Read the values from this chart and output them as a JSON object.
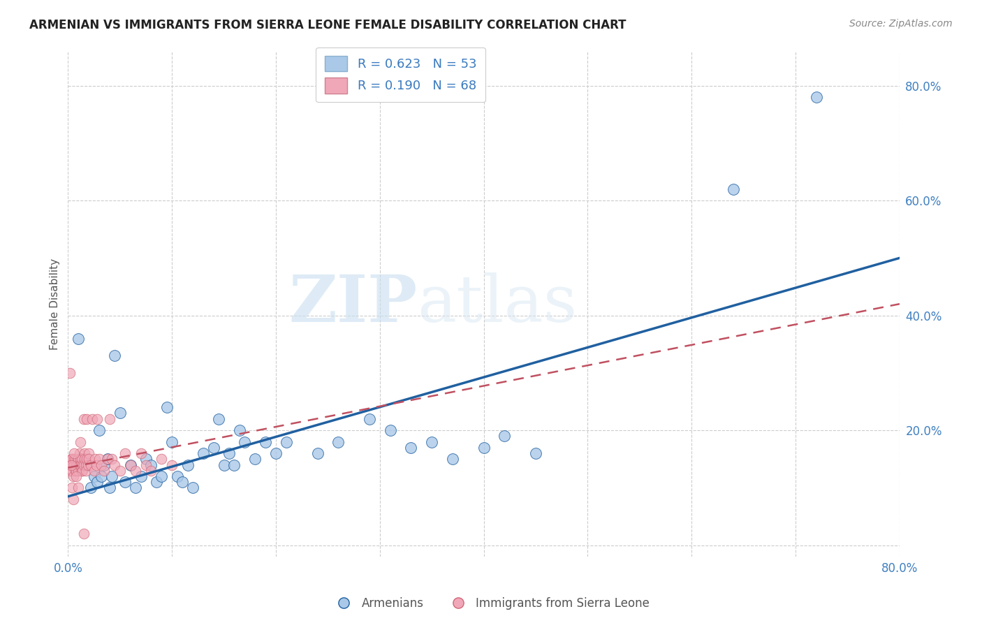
{
  "title": "ARMENIAN VS IMMIGRANTS FROM SIERRA LEONE FEMALE DISABILITY CORRELATION CHART",
  "source": "Source: ZipAtlas.com",
  "ylabel": "Female Disability",
  "xlim": [
    0,
    0.8
  ],
  "ylim": [
    -0.02,
    0.86
  ],
  "xticks": [
    0.0,
    0.1,
    0.2,
    0.3,
    0.4,
    0.5,
    0.6,
    0.7,
    0.8
  ],
  "xticklabels": [
    "0.0%",
    "",
    "",
    "",
    "",
    "",
    "",
    "",
    "80.0%"
  ],
  "ytick_positions": [
    0.0,
    0.2,
    0.4,
    0.6,
    0.8
  ],
  "yticklabels": [
    "",
    "20.0%",
    "40.0%",
    "60.0%",
    "80.0%"
  ],
  "legend_r1": "R = 0.623",
  "legend_n1": "N = 53",
  "legend_r2": "R = 0.190",
  "legend_n2": "N = 68",
  "watermark_zip": "ZIP",
  "watermark_atlas": "atlas",
  "blue_color": "#aac8e8",
  "pink_color": "#f0a8b8",
  "line_blue": "#2060a0",
  "line_pink": "#c05060",
  "blue_line_x0": 0.0,
  "blue_line_y0": 0.085,
  "blue_line_x1": 0.8,
  "blue_line_y1": 0.5,
  "pink_line_x0": 0.0,
  "pink_line_y0": 0.135,
  "pink_line_x1": 0.8,
  "pink_line_y1": 0.42,
  "armenians_x": [
    0.005,
    0.01,
    0.012,
    0.018,
    0.022,
    0.025,
    0.028,
    0.03,
    0.032,
    0.035,
    0.038,
    0.04,
    0.042,
    0.045,
    0.05,
    0.055,
    0.06,
    0.065,
    0.07,
    0.075,
    0.08,
    0.085,
    0.09,
    0.095,
    0.1,
    0.105,
    0.11,
    0.115,
    0.12,
    0.13,
    0.14,
    0.145,
    0.15,
    0.155,
    0.16,
    0.165,
    0.17,
    0.18,
    0.19,
    0.2,
    0.21,
    0.24,
    0.26,
    0.29,
    0.31,
    0.33,
    0.35,
    0.37,
    0.4,
    0.42,
    0.45,
    0.64,
    0.72
  ],
  "armenians_y": [
    0.14,
    0.36,
    0.15,
    0.14,
    0.1,
    0.12,
    0.11,
    0.2,
    0.12,
    0.14,
    0.15,
    0.1,
    0.12,
    0.33,
    0.23,
    0.11,
    0.14,
    0.1,
    0.12,
    0.15,
    0.14,
    0.11,
    0.12,
    0.24,
    0.18,
    0.12,
    0.11,
    0.14,
    0.1,
    0.16,
    0.17,
    0.22,
    0.14,
    0.16,
    0.14,
    0.2,
    0.18,
    0.15,
    0.18,
    0.16,
    0.18,
    0.16,
    0.18,
    0.22,
    0.2,
    0.17,
    0.18,
    0.15,
    0.17,
    0.19,
    0.16,
    0.62,
    0.78
  ],
  "sierra_leone_x": [
    0.001,
    0.002,
    0.003,
    0.003,
    0.004,
    0.004,
    0.005,
    0.005,
    0.006,
    0.006,
    0.007,
    0.007,
    0.008,
    0.008,
    0.009,
    0.009,
    0.01,
    0.01,
    0.011,
    0.011,
    0.012,
    0.012,
    0.013,
    0.013,
    0.014,
    0.014,
    0.015,
    0.015,
    0.016,
    0.016,
    0.017,
    0.017,
    0.018,
    0.018,
    0.019,
    0.02,
    0.02,
    0.022,
    0.023,
    0.025,
    0.026,
    0.027,
    0.028,
    0.03,
    0.032,
    0.035,
    0.038,
    0.04,
    0.042,
    0.045,
    0.05,
    0.055,
    0.06,
    0.065,
    0.07,
    0.075,
    0.08,
    0.09,
    0.1,
    0.002,
    0.003,
    0.004,
    0.005,
    0.006,
    0.008,
    0.01,
    0.012,
    0.015
  ],
  "sierra_leone_y": [
    0.14,
    0.13,
    0.15,
    0.14,
    0.13,
    0.15,
    0.14,
    0.12,
    0.15,
    0.14,
    0.13,
    0.15,
    0.14,
    0.13,
    0.15,
    0.14,
    0.13,
    0.15,
    0.14,
    0.16,
    0.15,
    0.14,
    0.13,
    0.15,
    0.14,
    0.13,
    0.22,
    0.14,
    0.16,
    0.15,
    0.14,
    0.13,
    0.22,
    0.15,
    0.14,
    0.16,
    0.15,
    0.14,
    0.22,
    0.13,
    0.15,
    0.14,
    0.22,
    0.15,
    0.14,
    0.13,
    0.15,
    0.22,
    0.15,
    0.14,
    0.13,
    0.16,
    0.14,
    0.13,
    0.16,
    0.14,
    0.13,
    0.15,
    0.14,
    0.3,
    0.14,
    0.1,
    0.08,
    0.16,
    0.12,
    0.1,
    0.18,
    0.02
  ]
}
